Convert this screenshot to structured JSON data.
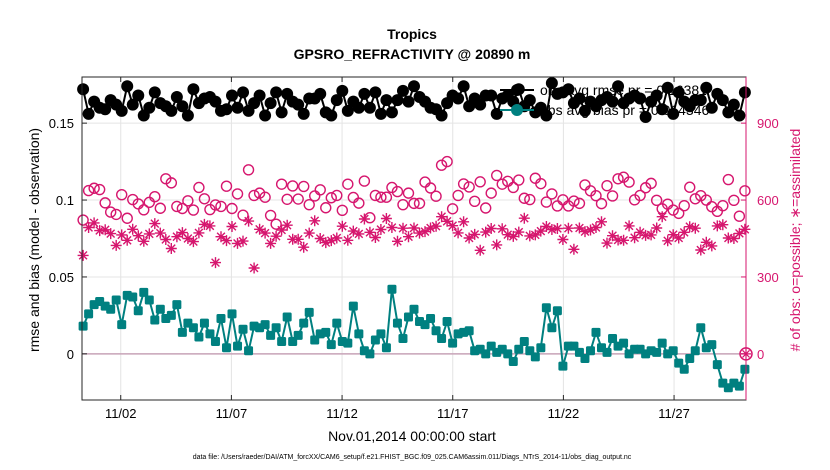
{
  "chart_data": {
    "type": "line",
    "title": "Tropics",
    "subtitle": "GPSRO_REFRACTIVITY @ 20890 m",
    "xlabel": "Nov.01,2014 00:00:00 start",
    "ylabel_left": "rmse and bias (model - observation)",
    "ylabel_right": "# of obs: o=possible; ∗=assimilated",
    "footnote": "data file: /Users/raeder/DAI/ATM_forcXX/CAM6_setup/f.e21.FHIST_BGC.f09_025.CAM6assim.011/Diags_NTrS_2014-11/obs_diag_output.nc",
    "x_range": [
      0.25,
      30.25
    ],
    "x_ticks": [
      2,
      7,
      12,
      17,
      22,
      27
    ],
    "x_tick_labels": [
      "11/02",
      "11/07",
      "11/12",
      "11/17",
      "11/22",
      "11/27"
    ],
    "y_left_range": [
      -0.03,
      0.18
    ],
    "y_left_ticks": [
      0,
      0.05,
      0.1,
      0.15
    ],
    "y_left_tick_labels": [
      "0",
      "0.05",
      "0.1",
      "0.15"
    ],
    "y_right_range": [
      -180,
      1080
    ],
    "y_right_ticks": [
      0,
      300,
      600,
      900
    ],
    "y_right_tick_labels": [
      "0",
      "300",
      "600",
      "900"
    ],
    "grid": true,
    "legend_position": "top-right",
    "legend": [
      {
        "label": "obs avg rmse pr = 0.16381",
        "color": "#000000"
      },
      {
        "label": "obs avg bias pr = 0.014346",
        "color": "#008080"
      }
    ],
    "series": [
      {
        "name": "obs avg rmse pr = 0.16381",
        "axis": "left",
        "color": "#000000",
        "style": "line-marker-circle",
        "values": [
          0.172,
          0.156,
          0.164,
          0.16,
          0.159,
          0.165,
          0.162,
          0.158,
          0.174,
          0.162,
          0.168,
          0.155,
          0.16,
          0.17,
          0.163,
          0.161,
          0.158,
          0.167,
          0.161,
          0.155,
          0.172,
          0.163,
          0.166,
          0.167,
          0.164,
          0.158,
          0.159,
          0.168,
          0.16,
          0.17,
          0.158,
          0.163,
          0.168,
          0.155,
          0.163,
          0.17,
          0.157,
          0.169,
          0.164,
          0.162,
          0.156,
          0.166,
          0.166,
          0.169,
          0.157,
          0.155,
          0.165,
          0.171,
          0.158,
          0.164,
          0.16,
          0.169,
          0.16,
          0.17,
          0.156,
          0.165,
          0.157,
          0.165,
          0.171,
          0.164,
          0.174,
          0.167,
          0.164,
          0.16,
          0.159,
          0.155,
          0.163,
          0.168,
          0.166,
          0.174,
          0.161,
          0.166,
          0.162,
          0.168,
          0.168,
          0.156,
          0.166,
          0.168,
          0.164,
          0.172,
          0.161,
          0.165,
          0.157,
          0.16,
          0.155,
          0.176,
          0.169,
          0.17,
          0.172,
          0.163,
          0.166,
          0.158,
          0.164,
          0.161,
          0.165,
          0.167,
          0.164,
          0.174,
          0.163,
          0.166,
          0.168,
          0.166,
          0.154,
          0.164,
          0.168,
          0.159,
          0.173,
          0.156,
          0.17,
          0.164,
          0.161,
          0.165,
          0.165,
          0.173,
          0.16,
          0.169,
          0.165,
          0.157,
          0.162,
          0.155,
          0.17
        ]
      },
      {
        "name": "obs avg bias pr = 0.014346",
        "axis": "left",
        "color": "#008080",
        "style": "line-marker-square",
        "values": [
          0.018,
          0.026,
          0.032,
          0.034,
          0.031,
          0.029,
          0.035,
          0.019,
          0.038,
          0.037,
          0.028,
          0.04,
          0.035,
          0.022,
          0.029,
          0.023,
          0.025,
          0.032,
          0.014,
          0.02,
          0.017,
          0.011,
          0.02,
          0.013,
          0.008,
          0.023,
          0.004,
          0.026,
          0.005,
          0.016,
          0.002,
          0.018,
          0.017,
          0.019,
          0.012,
          0.017,
          0.008,
          0.024,
          0.008,
          0.012,
          0.02,
          0.027,
          0.009,
          0.013,
          0.014,
          0.006,
          0.02,
          0.008,
          0.007,
          0.031,
          0.013,
          0.002,
          0.0,
          0.009,
          0.013,
          0.004,
          0.042,
          0.02,
          0.01,
          0.024,
          0.029,
          0.021,
          0.019,
          0.023,
          0.015,
          0.01,
          0.021,
          0.007,
          0.013,
          0.014,
          0.015,
          0.002,
          0.003,
          0.0,
          0.005,
          0.001,
          0.003,
          0.0,
          -0.005,
          0.003,
          0.008,
          0.002,
          -0.002,
          0.004,
          0.03,
          0.017,
          0.028,
          -0.008,
          0.005,
          0.005,
          0.001,
          -0.003,
          0.002,
          0.014,
          0.004,
          0.001,
          0.01,
          0.005,
          0.007,
          0.0,
          0.003,
          0.003,
          0.0,
          0.002,
          0.001,
          0.007,
          0.0,
          0.002,
          -0.006,
          -0.01,
          -0.003,
          0.002,
          0.017,
          0.004,
          0.006,
          -0.007,
          -0.019,
          -0.022,
          -0.019,
          -0.021,
          -0.01
        ]
      },
      {
        "name": "obs possible",
        "axis": "right",
        "color": "#d6166e",
        "style": "marker-circle-open",
        "values": [
          522,
          637,
          646,
          641,
          589,
          553,
          544,
          621,
          529,
          602,
          585,
          562,
          591,
          613,
          568,
          683,
          667,
          575,
          567,
          597,
          561,
          649,
          605,
          563,
          581,
          575,
          654,
          567,
          624,
          541,
          718,
          618,
          627,
          611,
          540,
          506,
          662,
          603,
          655,
          604,
          653,
          582,
          616,
          640,
          570,
          609,
          618,
          560,
          662,
          610,
          588,
          674,
          531,
          618,
          611,
          611,
          649,
          633,
          582,
          627,
          587,
          587,
          670,
          647,
          615,
          736,
          750,
          566,
          618,
          663,
          651,
          595,
          671,
          569,
          627,
          696,
          662,
          673,
          649,
          678,
          607,
          602,
          685,
          664,
          592,
          624,
          577,
          601,
          577,
          596,
          587,
          659,
          636,
          617,
          586,
          656,
          616,
          683,
          689,
          670,
          601,
          618,
          648,
          665,
          599,
          566,
          584,
          561,
          548,
          578,
          650,
          605,
          617,
          600,
          574,
          556,
          578,
          680,
          599,
          537,
          636
        ]
      },
      {
        "name": "obs assimilated",
        "axis": "right",
        "color": "#d6166e",
        "style": "marker-star",
        "values": [
          384,
          493,
          511,
          481,
          484,
          469,
          423,
          464,
          443,
          486,
          461,
          439,
          468,
          508,
          471,
          446,
          411,
          457,
          473,
          450,
          438,
          472,
          505,
          499,
          356,
          457,
          442,
          497,
          431,
          440,
          518,
          335,
          486,
          471,
          431,
          459,
          483,
          502,
          447,
          447,
          416,
          471,
          519,
          450,
          434,
          442,
          452,
          498,
          443,
          479,
          468,
          526,
          474,
          454,
          485,
          528,
          493,
          439,
          490,
          457,
          491,
          471,
          477,
          491,
          498,
          535,
          517,
          500,
          472,
          515,
          452,
          466,
          404,
          475,
          489,
          425,
          488,
          465,
          458,
          475,
          529,
          460,
          464,
          479,
          497,
          485,
          489,
          446,
          490,
          408,
          491,
          477,
          483,
          493,
          515,
          432,
          461,
          444,
          443,
          499,
          453,
          474,
          462,
          464,
          491,
          535,
          441,
          465,
          452,
          474,
          496,
          490,
          405,
          435,
          421,
          499,
          504,
          452,
          450,
          470,
          486
        ]
      }
    ]
  }
}
